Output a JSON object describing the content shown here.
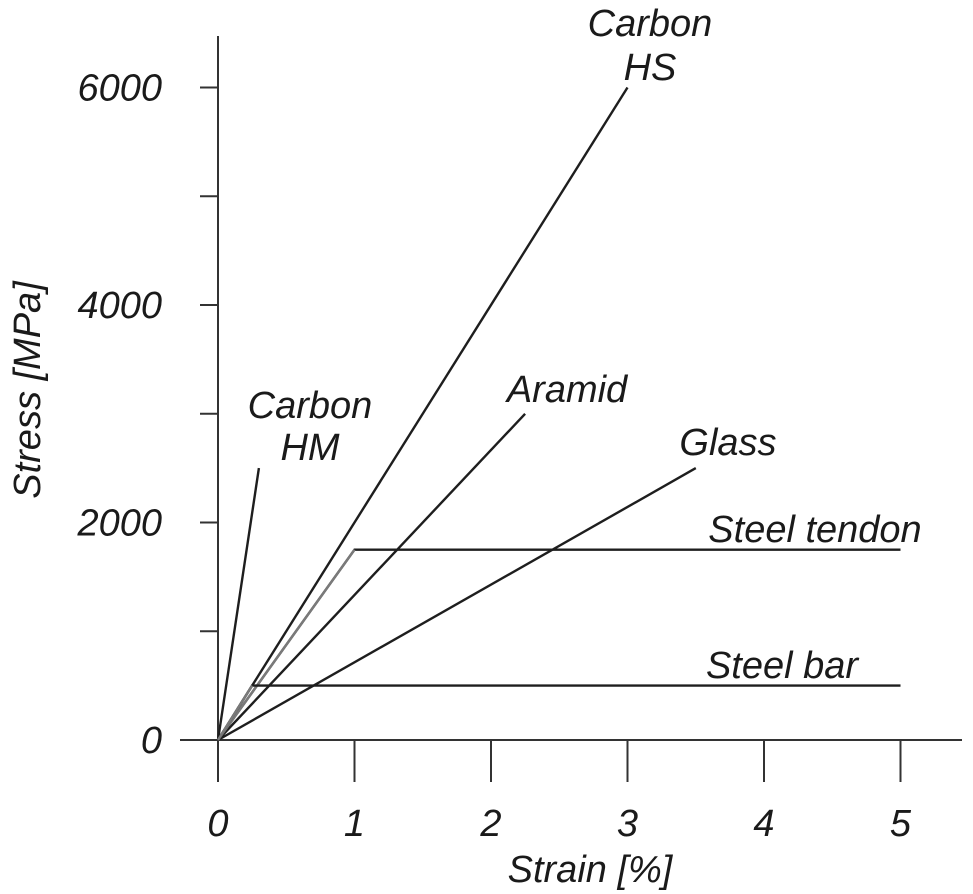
{
  "chart_data": {
    "type": "line",
    "xlabel": "Strain [%]",
    "ylabel": "Stress [MPa]",
    "xlim": [
      0,
      5.4
    ],
    "ylim": [
      0,
      6500
    ],
    "x_ticks": [
      0,
      1,
      2,
      3,
      4,
      5
    ],
    "x_tick_labels": [
      "0",
      "1",
      "2",
      "3",
      "4",
      "5"
    ],
    "y_ticks": [
      0,
      1000,
      2000,
      3000,
      4000,
      5000,
      6000
    ],
    "y_tick_labels": [
      "0",
      "",
      "2000",
      "",
      "4000",
      "",
      "6000"
    ],
    "grid": false,
    "legend": "none",
    "series": [
      {
        "name": "Carbon HM",
        "label_lines": [
          "Carbon",
          "HM"
        ],
        "x": [
          0,
          0.3
        ],
        "y": [
          0,
          2500
        ]
      },
      {
        "name": "Carbon HS",
        "label_lines": [
          "Carbon",
          "HS"
        ],
        "x": [
          0,
          3.0
        ],
        "y": [
          0,
          6000
        ]
      },
      {
        "name": "Aramid",
        "label_lines": [
          "Aramid"
        ],
        "x": [
          0,
          2.25
        ],
        "y": [
          0,
          3000
        ]
      },
      {
        "name": "Glass",
        "label_lines": [
          "Glass"
        ],
        "x": [
          0,
          3.5
        ],
        "y": [
          0,
          2500
        ]
      },
      {
        "name": "Steel tendon",
        "label_lines": [
          "Steel tendon"
        ],
        "x": [
          0,
          1.0,
          5.0
        ],
        "y": [
          0,
          1750,
          1750
        ]
      },
      {
        "name": "Steel bar",
        "label_lines": [
          "Steel bar"
        ],
        "x": [
          0,
          0.25,
          5.0
        ],
        "y": [
          0,
          500,
          500
        ]
      }
    ],
    "colors": {
      "line": "#1e1e1e",
      "steel_ramp": "#7a7a7a",
      "axis": "#333333",
      "text": "#1a1a1a"
    }
  }
}
